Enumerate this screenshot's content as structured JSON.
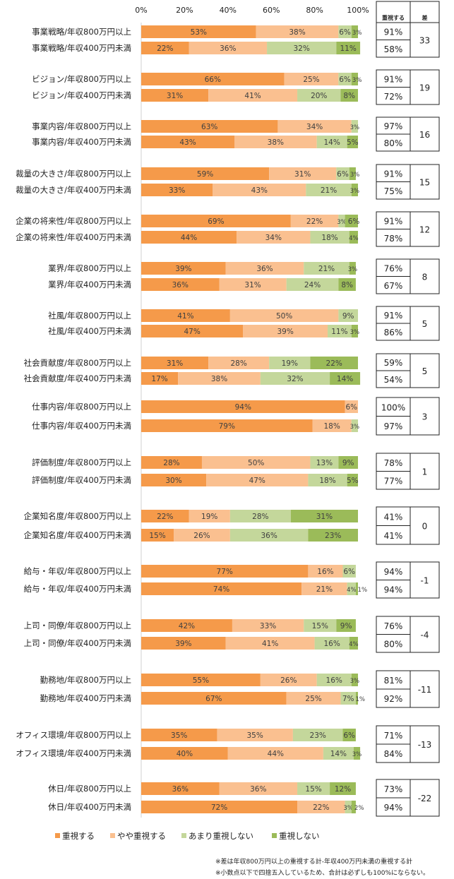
{
  "chart_data": {
    "type": "bar",
    "orientation": "horizontal-stacked-100",
    "xlim": [
      0,
      100
    ],
    "x_ticks": [
      "0%",
      "20%",
      "40%",
      "60%",
      "80%",
      "100%"
    ],
    "legend_position": "bottom",
    "series": [
      {
        "name": "重視する",
        "color": "#f59a4a"
      },
      {
        "name": "やや重視する",
        "color": "#fac090"
      },
      {
        "name": "あまり重視しない",
        "color": "#c4d79b"
      },
      {
        "name": "重視しない",
        "color": "#9bbb59"
      }
    ],
    "table_headers": [
      "重視する",
      "差"
    ],
    "groups": [
      {
        "rows": [
          {
            "label": "事業戦略/年収800万円以上",
            "values": [
              53,
              38,
              6,
              3
            ],
            "total": "91%"
          },
          {
            "label": "事業戦略/年収400万円未満",
            "values": [
              22,
              36,
              32,
              11
            ],
            "total": "58%"
          }
        ],
        "diff": "33"
      },
      {
        "rows": [
          {
            "label": "ビジョン/年収800万円以上",
            "values": [
              66,
              25,
              6,
              3
            ],
            "total": "91%"
          },
          {
            "label": "ビジョン/年収400万円未満",
            "values": [
              31,
              41,
              20,
              8
            ],
            "total": "72%"
          }
        ],
        "diff": "19"
      },
      {
        "rows": [
          {
            "label": "事業内容/年収800万円以上",
            "values": [
              63,
              34,
              3,
              0
            ],
            "total": "97%"
          },
          {
            "label": "事業内容/年収400万円未満",
            "values": [
              43,
              38,
              14,
              5
            ],
            "total": "80%"
          }
        ],
        "diff": "16"
      },
      {
        "rows": [
          {
            "label": "裁量の大きさ/年収800万円以上",
            "values": [
              59,
              31,
              6,
              3
            ],
            "total": "91%"
          },
          {
            "label": "裁量の大きさ/年収400万円未満",
            "values": [
              33,
              43,
              21,
              3
            ],
            "total": "75%"
          }
        ],
        "diff": "15"
      },
      {
        "rows": [
          {
            "label": "企業の将来性/年収800万円以上",
            "values": [
              69,
              22,
              3,
              6
            ],
            "total": "91%"
          },
          {
            "label": "企業の将来性/年収400万円未満",
            "values": [
              44,
              34,
              18,
              4
            ],
            "total": "78%"
          }
        ],
        "diff": "12"
      },
      {
        "rows": [
          {
            "label": "業界/年収800万円以上",
            "values": [
              39,
              36,
              21,
              3
            ],
            "total": "76%"
          },
          {
            "label": "業界/年収400万円未満",
            "values": [
              36,
              31,
              24,
              8
            ],
            "total": "67%"
          }
        ],
        "diff": "8"
      },
      {
        "rows": [
          {
            "label": "社風/年収800万円以上",
            "values": [
              41,
              50,
              9,
              0
            ],
            "total": "91%"
          },
          {
            "label": "社風/年収400万円未満",
            "values": [
              47,
              39,
              11,
              3
            ],
            "total": "86%"
          }
        ],
        "diff": "5"
      },
      {
        "rows": [
          {
            "label": "社会貢献度/年収800万円以上",
            "values": [
              31,
              28,
              19,
              22
            ],
            "total": "59%"
          },
          {
            "label": "社会貢献度/年収400万円未満",
            "values": [
              17,
              38,
              32,
              14
            ],
            "total": "54%"
          }
        ],
        "diff": "5"
      },
      {
        "rows": [
          {
            "label": "仕事内容/年収800万円以上",
            "values": [
              94,
              6,
              0,
              0
            ],
            "total": "100%"
          },
          {
            "label": "仕事内容/年収400万円未満",
            "values": [
              79,
              18,
              3,
              0
            ],
            "total": "97%"
          }
        ],
        "diff": "3"
      },
      {
        "rows": [
          {
            "label": "評価制度/年収800万円以上",
            "values": [
              28,
              50,
              13,
              9
            ],
            "total": "78%"
          },
          {
            "label": "評価制度/年収400万円未満",
            "values": [
              30,
              47,
              18,
              5
            ],
            "total": "77%"
          }
        ],
        "diff": "1"
      },
      {
        "rows": [
          {
            "label": "企業知名度/年収800万円以上",
            "values": [
              22,
              19,
              28,
              31
            ],
            "total": "41%"
          },
          {
            "label": "企業知名度/年収400万円未満",
            "values": [
              15,
              26,
              36,
              23
            ],
            "total": "41%"
          }
        ],
        "diff": "0"
      },
      {
        "rows": [
          {
            "label": "給与・年収/年収800万円以上",
            "values": [
              77,
              16,
              6,
              0
            ],
            "total": "94%"
          },
          {
            "label": "給与・年収/年収400万円未満",
            "values": [
              74,
              21,
              4,
              1
            ],
            "total": "94%"
          }
        ],
        "diff": "-1"
      },
      {
        "rows": [
          {
            "label": "上司・同僚/年収800万円以上",
            "values": [
              42,
              33,
              15,
              9
            ],
            "total": "76%"
          },
          {
            "label": "上司・同僚/年収400万円未満",
            "values": [
              39,
              41,
              16,
              4
            ],
            "total": "80%"
          }
        ],
        "diff": "-4"
      },
      {
        "rows": [
          {
            "label": "勤務地/年収800万円以上",
            "values": [
              55,
              26,
              16,
              3
            ],
            "total": "81%"
          },
          {
            "label": "勤務地/年収400万円未満",
            "values": [
              67,
              25,
              7,
              1
            ],
            "total": "92%"
          }
        ],
        "diff": "-11"
      },
      {
        "rows": [
          {
            "label": "オフィス環境/年収800万円以上",
            "values": [
              35,
              35,
              23,
              6
            ],
            "total": "71%"
          },
          {
            "label": "オフィス環境/年収400万円未満",
            "values": [
              40,
              44,
              14,
              3
            ],
            "total": "84%"
          }
        ],
        "diff": "-13"
      },
      {
        "rows": [
          {
            "label": "休日/年収800万円以上",
            "values": [
              36,
              36,
              15,
              12
            ],
            "total": "73%"
          },
          {
            "label": "休日/年収400万円未満",
            "values": [
              72,
              22,
              3,
              2
            ],
            "total": "94%"
          }
        ],
        "diff": "-22"
      }
    ],
    "notes": [
      "※差は年収800万円以上の重視する計-年収400万円未満の重視する計",
      "※小数点以下で四捨五入しているため、合計は必ずしも100%にならない。"
    ]
  }
}
